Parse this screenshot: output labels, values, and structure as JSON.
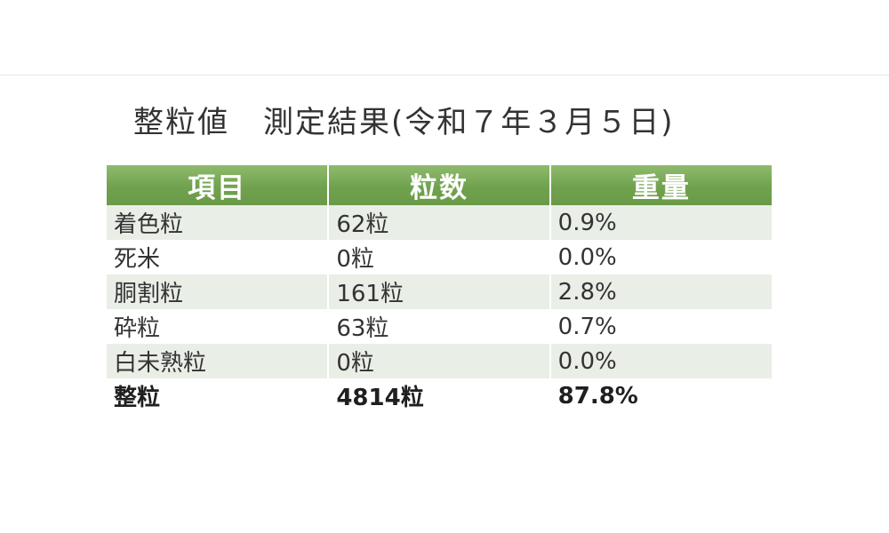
{
  "title": {
    "main": "整粒値",
    "sub": "測定結果(令和７年３月５日)"
  },
  "table": {
    "headers": [
      "項目",
      "粒数",
      "重量"
    ],
    "rows": [
      {
        "item": "着色粒",
        "count": "62粒",
        "weight": "0.9%"
      },
      {
        "item": "死米",
        "count": "0粒",
        "weight": "0.0%"
      },
      {
        "item": "胴割粒",
        "count": "161粒",
        "weight": "2.8%"
      },
      {
        "item": "砕粒",
        "count": "63粒",
        "weight": "0.7%"
      },
      {
        "item": "白未熟粒",
        "count": "0粒",
        "weight": "0.0%"
      },
      {
        "item": "整粒",
        "count": "4814粒",
        "weight": "87.8%"
      }
    ]
  },
  "colors": {
    "header_green": "#70a24e",
    "row_shade": "#e9eee7"
  }
}
